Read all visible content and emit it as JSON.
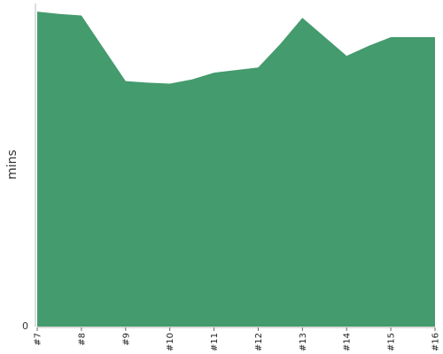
{
  "chart_data": {
    "type": "area",
    "title": "",
    "xlabel": "",
    "ylabel": "mins",
    "color": "#449B6D",
    "x": [
      "#7",
      "#7.5",
      "#8",
      "#9",
      "#9.5",
      "#10",
      "#10.5",
      "#11",
      "#12",
      "#12.5",
      "#13",
      "#14",
      "#14.5",
      "#15",
      "#16"
    ],
    "categories": [
      "#7",
      "#8",
      "#9",
      "#10",
      "#11",
      "#12",
      "#13",
      "#14",
      "#15",
      "#16"
    ],
    "series": [
      {
        "values_at_x": [
          [
            0,
            97.5
          ],
          [
            0.5,
            96.8
          ],
          [
            1,
            96.3
          ],
          [
            2,
            76.0
          ],
          [
            2.5,
            75.5
          ],
          [
            3,
            75.2
          ],
          [
            3.5,
            76.5
          ],
          [
            4,
            78.6
          ],
          [
            5,
            80.2
          ],
          [
            5.5,
            87.5
          ],
          [
            6,
            95.6
          ],
          [
            7,
            83.8
          ],
          [
            7.5,
            86.9
          ],
          [
            8,
            89.6
          ],
          [
            9,
            89.6
          ]
        ]
      }
    ],
    "yticks": [
      "0"
    ],
    "ylim": [
      0,
      100
    ],
    "grid": false,
    "legend": "none"
  }
}
